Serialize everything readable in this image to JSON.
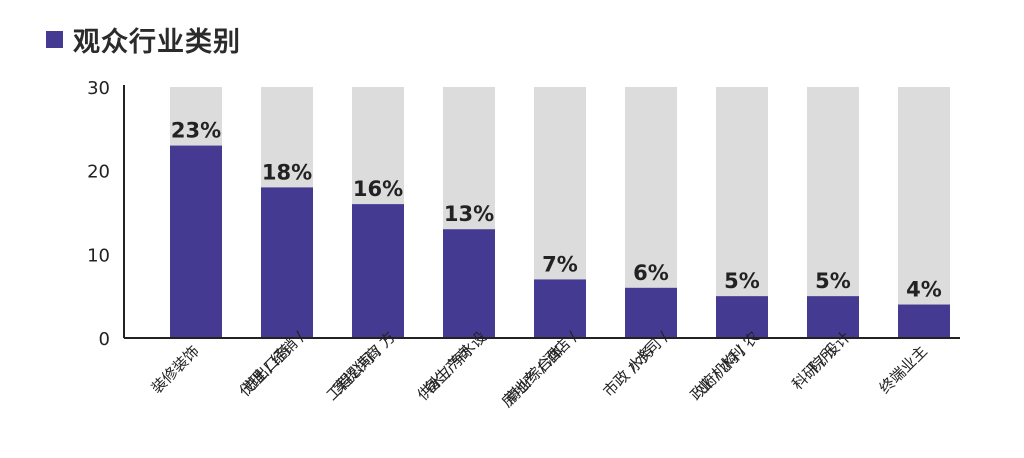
{
  "chart_data": {
    "type": "bar",
    "title": "观众行业类别",
    "categories": [
      [
        "装修装饰"
      ],
      [
        "代理 / 经销 /",
        "进出口商"
      ],
      [
        "工程公司 / 方",
        "案提供商"
      ],
      [
        "供水 / 净水设",
        "备生产商"
      ],
      [
        "房地产 / 酒店 /",
        "商业综合体"
      ],
      [
        "市政 / 水司 /",
        "水务"
      ],
      [
        "政府机构 / 农",
        "业 / 水利"
      ],
      [
        "科研 / 设计",
        "院所"
      ],
      [
        "终端业主"
      ]
    ],
    "values": [
      23,
      18,
      16,
      13,
      7,
      6,
      5,
      5,
      4
    ],
    "data_labels": [
      "23%",
      "18%",
      "16%",
      "13%",
      "7%",
      "6%",
      "5%",
      "5%",
      "4%"
    ],
    "ylim": [
      0,
      30
    ],
    "yticks": [
      0,
      10,
      20,
      30
    ],
    "xlabel": "",
    "ylabel": "",
    "background_bar_value": 30,
    "grid": false,
    "colors": {
      "bar": "#443a92",
      "background_bar": "#dcdcdc",
      "title_square": "#443a92",
      "axis": "#222222",
      "text": "#222222"
    }
  }
}
